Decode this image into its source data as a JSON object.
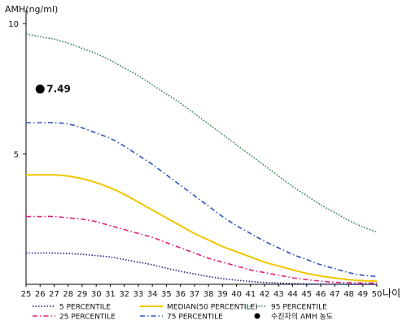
{
  "chart_data": {
    "type": "line",
    "ylabel": "AMH(ng/ml)",
    "xlabel": "나이",
    "x": [
      25,
      26,
      27,
      28,
      29,
      30,
      31,
      32,
      33,
      34,
      35,
      36,
      37,
      38,
      39,
      40,
      41,
      42,
      43,
      44,
      45,
      46,
      47,
      48,
      49,
      50
    ],
    "xlim": [
      25,
      50
    ],
    "ylim": [
      0,
      10.5
    ],
    "yticks": [
      5,
      10
    ],
    "grid": false,
    "legend_position": "bottom",
    "series": [
      {
        "name": "95 PERCENTILE",
        "color": "#2e7d4f",
        "dash": "dotted",
        "values": [
          9.6,
          9.5,
          9.4,
          9.25,
          9.05,
          8.85,
          8.6,
          8.3,
          8.0,
          7.65,
          7.3,
          6.95,
          6.55,
          6.15,
          5.75,
          5.35,
          4.95,
          4.55,
          4.15,
          3.75,
          3.4,
          3.05,
          2.75,
          2.45,
          2.2,
          2.0
        ]
      },
      {
        "name": "75 PERCENTILE",
        "color": "#3355bb",
        "dash": "dashdot",
        "values": [
          6.2,
          6.2,
          6.2,
          6.15,
          6.0,
          5.8,
          5.6,
          5.3,
          4.95,
          4.6,
          4.2,
          3.8,
          3.4,
          3.0,
          2.6,
          2.25,
          1.95,
          1.65,
          1.4,
          1.15,
          0.95,
          0.75,
          0.6,
          0.45,
          0.35,
          0.3
        ]
      },
      {
        "name": "MEDIAN(50 PERCENTILE)",
        "color": "#f2c500",
        "dash": "solid",
        "values": [
          4.2,
          4.2,
          4.2,
          4.15,
          4.05,
          3.9,
          3.7,
          3.45,
          3.15,
          2.85,
          2.55,
          2.25,
          1.95,
          1.7,
          1.45,
          1.25,
          1.05,
          0.85,
          0.7,
          0.55,
          0.42,
          0.32,
          0.24,
          0.18,
          0.14,
          0.12
        ]
      },
      {
        "name": "25 PERCENTILE",
        "color": "#e0207a",
        "dash": "dashdot",
        "values": [
          2.6,
          2.6,
          2.6,
          2.55,
          2.5,
          2.4,
          2.25,
          2.1,
          1.95,
          1.8,
          1.6,
          1.4,
          1.2,
          1.0,
          0.85,
          0.7,
          0.55,
          0.45,
          0.35,
          0.25,
          0.18,
          0.12,
          0.08,
          0.06,
          0.05,
          0.05
        ]
      },
      {
        "name": "5 PERCENTILE",
        "color": "#1a237e",
        "dash": "dotted",
        "values": [
          1.2,
          1.2,
          1.2,
          1.18,
          1.15,
          1.1,
          1.05,
          0.95,
          0.85,
          0.75,
          0.62,
          0.5,
          0.4,
          0.3,
          0.22,
          0.16,
          0.11,
          0.07,
          0.05,
          0.03,
          0.02,
          0.01,
          0.01,
          0.0,
          0.0,
          0.0
        ]
      }
    ],
    "marker": {
      "name": "수진자의 AMH 농도",
      "x": 26,
      "y": 7.49,
      "label": "7.49",
      "color": "#000000"
    },
    "legend": [
      {
        "name": "5 PERCENTILE",
        "color": "#1a237e",
        "dash": "dotted"
      },
      {
        "name": "25 PERCENTILE",
        "color": "#e0207a",
        "dash": "dashdot"
      },
      {
        "name": "MEDIAN(50 PERCENTILE)",
        "color": "#f2c500",
        "dash": "solid"
      },
      {
        "name": "75 PERCENTILE",
        "color": "#3355bb",
        "dash": "dashdot"
      },
      {
        "name": "95 PERCENTILE",
        "color": "#2e7d4f",
        "dash": "dotted"
      },
      {
        "name": "수진자의 AMH 농도",
        "color": "#000000",
        "dash": "marker"
      }
    ]
  }
}
